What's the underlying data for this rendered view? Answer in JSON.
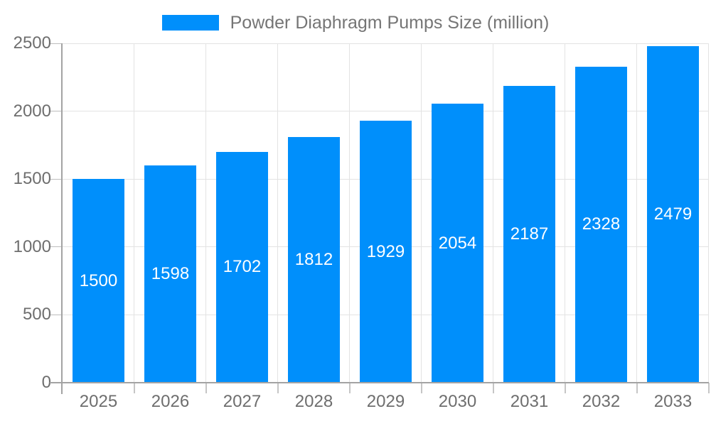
{
  "legend": {
    "label": "Powder Diaphragm Pumps Size (million)"
  },
  "colors": {
    "bar": "#008FFB",
    "grid": "#e3e3e3",
    "axis": "#a3a3a3",
    "tick": "#c6c6c6",
    "tick_label": "#6e6e6e",
    "legend_text": "#757575",
    "data_label": "#ffffff",
    "background": "#ffffff"
  },
  "chart_data": {
    "type": "bar",
    "title": "Powder Diaphragm Pumps Size (million)",
    "series_name": "Powder Diaphragm Pumps Size (million)",
    "categories": [
      "2025",
      "2026",
      "2027",
      "2028",
      "2029",
      "2030",
      "2031",
      "2032",
      "2033"
    ],
    "values": [
      1500,
      1598,
      1702,
      1812,
      1929,
      2054,
      2187,
      2328,
      2479
    ],
    "data_labels": [
      "1500",
      "1598",
      "1702",
      "1812",
      "1929",
      "2054",
      "2187",
      "2328",
      "2479"
    ],
    "xlabel": "",
    "ylabel": "",
    "ylim": [
      0,
      2500
    ],
    "yticks": [
      0,
      500,
      1000,
      1500,
      2000,
      2500
    ],
    "ytick_labels": [
      "0",
      "500",
      "1000",
      "1500",
      "2000",
      "2500"
    ],
    "grid": true,
    "legend_position": "top",
    "bar_width_fraction": 0.72,
    "data_label_position": "center-inside"
  }
}
